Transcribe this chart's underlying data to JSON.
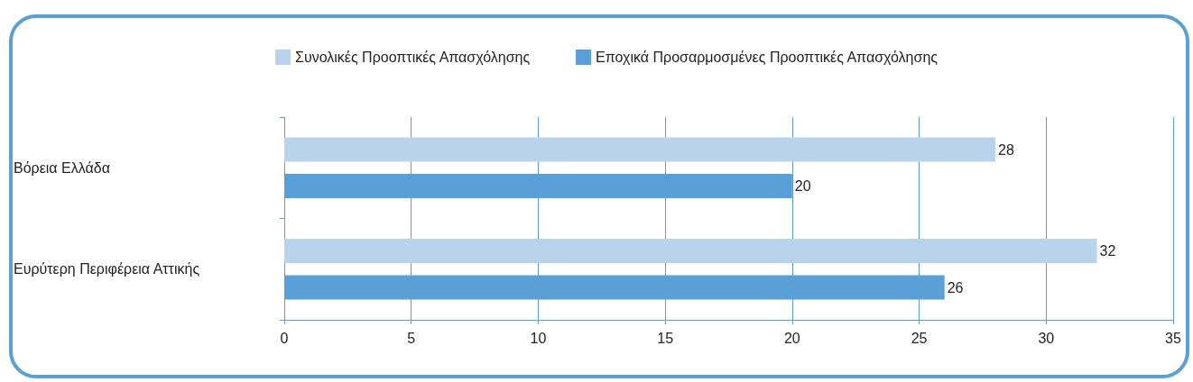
{
  "chart_data": {
    "type": "bar",
    "orientation": "horizontal",
    "categories": [
      "Βόρεια Ελλάδα",
      "Ευρύτερη Περιφέρεια Αττικής"
    ],
    "series": [
      {
        "name": "Συνολικές Προοπτικές Απασχόλησης",
        "color": "#b9d3ec",
        "values": [
          28,
          32
        ]
      },
      {
        "name": "Εποχικά Προσαρμοσμένες Προοπτικές Απασχόλησης",
        "color": "#5aa0d8",
        "values": [
          20,
          26
        ]
      }
    ],
    "xlim": [
      0,
      35
    ],
    "xticks": [
      0,
      5,
      10,
      15,
      20,
      25,
      30,
      35
    ],
    "grid": "x",
    "legend": "top",
    "data_labels": true
  }
}
